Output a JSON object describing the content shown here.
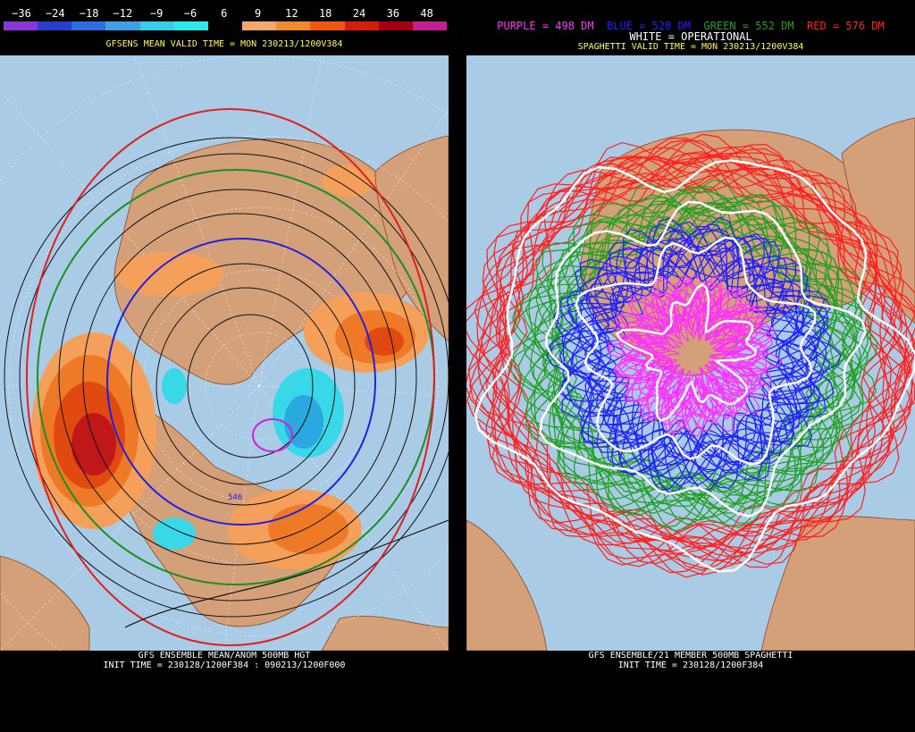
{
  "left": {
    "colorbar_ticks": [
      "−36",
      "−24",
      "−18",
      "−12",
      "−9",
      "−6",
      "6",
      "9",
      "12",
      "18",
      "24",
      "36",
      "48"
    ],
    "colorbar_colors": [
      "#8a35d6",
      "#2a3fc8",
      "#2b6fe0",
      "#3d9fe8",
      "#38cce8",
      "#2ee8e8",
      "#000000",
      "#f2a86a",
      "#f08a30",
      "#ec5a10",
      "#d02008",
      "#a00010",
      "#c02090"
    ],
    "header": "GFSENS MEAN VALID TIME = MON 230213/1200V384",
    "footer_line1": "GFS ENSEMBLE MEAN/ANOM 500MB HGT",
    "footer_line2": "INIT TIME = 230128/1200F384 : 090213/1200F000",
    "contour_label": "546"
  },
  "right": {
    "legend": [
      {
        "text": "PURPLE = 498 DM",
        "color": "#ff30ff"
      },
      {
        "text": "BLUE = 528 DM",
        "color": "#2020ff"
      },
      {
        "text": "GREEN = 552 DM",
        "color": "#20a020"
      },
      {
        "text": "RED = 576 DM",
        "color": "#ff2020"
      }
    ],
    "operational_label": "WHITE = OPERATIONAL",
    "header": "SPAGHETTI VALID TIME = MON 230213/1200V384",
    "footer_line1": "GFS ENSEMBLE/21 MEMBER 500MB SPAGHETTI",
    "footer_line2": "INIT TIME = 230128/1200F384"
  }
}
